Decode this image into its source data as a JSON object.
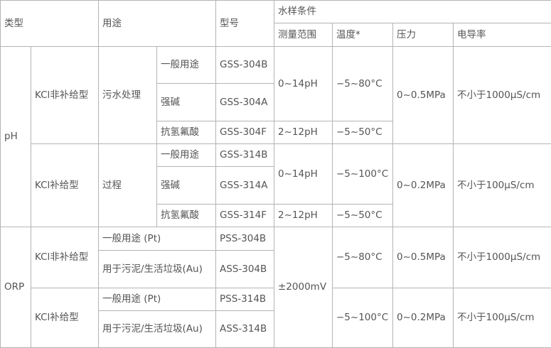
{
  "header": {
    "type": "类型",
    "usage": "用途",
    "model": "型号",
    "conditions": "水样条件",
    "range": "测量范围",
    "temp": "温度*",
    "pressure": "压力",
    "conductivity": "电导率"
  },
  "ph": {
    "label": "pH",
    "groups": [
      {
        "type": "KCl非补给型",
        "usage": "污水处理",
        "rows": [
          {
            "sub": "一般用途",
            "model": "GSS-304B"
          },
          {
            "sub": "强碱",
            "model": "GSS-304A"
          },
          {
            "sub": "抗氢氟酸",
            "model": "GSS-304F"
          }
        ],
        "range_a": "0~14pH",
        "temp_a": "−5~80°C",
        "range_b": "2~12pH",
        "temp_b": "−5~50°C",
        "pressure": "0~0.5MPa",
        "conductivity": "不小于1000μS/cm"
      },
      {
        "type": "KCl补给型",
        "usage": "过程",
        "rows": [
          {
            "sub": "一般用途",
            "model": "GSS-314B"
          },
          {
            "sub": "强碱",
            "model": "GSS-314A"
          },
          {
            "sub": "抗氢氟酸",
            "model": "GSS-314F"
          }
        ],
        "range_a": "0~14pH",
        "temp_a": "−5~100°C",
        "range_b": "2~12pH",
        "temp_b": "−5~50°C",
        "pressure": "0~0.2MPa",
        "conductivity": "不小于100μS/cm"
      }
    ]
  },
  "orp": {
    "label": "ORP",
    "range": "±2000mV",
    "groups": [
      {
        "type": "KCl非补给型",
        "rows": [
          {
            "usage": "一般用途 (Pt)",
            "model": "PSS-304B"
          },
          {
            "usage": "用于污泥/生活垃圾(Au)",
            "model": "ASS-304B"
          }
        ],
        "temp": "−5~80°C",
        "pressure": "0~0.5MPa",
        "conductivity": "不小于1000μS/cm"
      },
      {
        "type": "KCl补给型",
        "rows": [
          {
            "usage": "一般用途 (Pt)",
            "model": "PSS-314B"
          },
          {
            "usage": "用于污泥/生活垃圾(Au)",
            "model": "ASS-314B"
          }
        ],
        "temp": "−5~100°C",
        "pressure": "0~0.2MPa",
        "conductivity": "不小于100μS/cm"
      }
    ]
  }
}
